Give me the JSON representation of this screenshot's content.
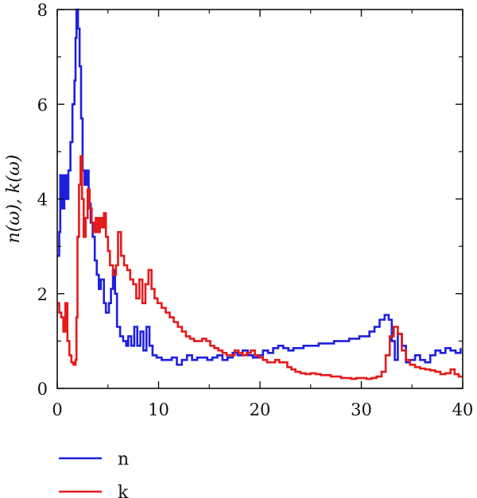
{
  "chart_data": {
    "type": "line",
    "ylabel": "n(ω), k(ω)",
    "xlabel": "",
    "xlim": [
      0,
      40
    ],
    "ylim": [
      0,
      8
    ],
    "xticks": [
      0,
      10,
      20,
      30,
      40
    ],
    "yticks": [
      0,
      2,
      4,
      6,
      8
    ],
    "tick_labels_x": [
      "0",
      "10",
      "20",
      "30",
      "40"
    ],
    "tick_labels_y": [
      "0",
      "2",
      "4",
      "6",
      "8"
    ],
    "grid": false,
    "legend_position": "bottom-left",
    "series": [
      {
        "name": "n",
        "color": "#1f1fe0",
        "points": [
          [
            0,
            2.8
          ],
          [
            0.2,
            3.3
          ],
          [
            0.3,
            4.5
          ],
          [
            0.5,
            3.8
          ],
          [
            0.7,
            4.5
          ],
          [
            0.9,
            4.0
          ],
          [
            1.1,
            4.6
          ],
          [
            1.3,
            5.2
          ],
          [
            1.5,
            6.0
          ],
          [
            1.7,
            6.5
          ],
          [
            1.8,
            7.4
          ],
          [
            1.9,
            8.0
          ],
          [
            2.05,
            7.6
          ],
          [
            2.2,
            6.8
          ],
          [
            2.35,
            5.7
          ],
          [
            2.5,
            4.6
          ],
          [
            2.7,
            4.3
          ],
          [
            2.9,
            4.6
          ],
          [
            3.1,
            3.9
          ],
          [
            3.3,
            3.5
          ],
          [
            3.5,
            3.2
          ],
          [
            3.7,
            2.7
          ],
          [
            3.9,
            2.4
          ],
          [
            4.1,
            2.1
          ],
          [
            4.3,
            2.3
          ],
          [
            4.6,
            1.8
          ],
          [
            4.8,
            1.6
          ],
          [
            5.1,
            1.8
          ],
          [
            5.3,
            2.1
          ],
          [
            5.5,
            2.5
          ],
          [
            5.7,
            2.0
          ],
          [
            5.9,
            1.3
          ],
          [
            6.2,
            1.1
          ],
          [
            6.5,
            1.0
          ],
          [
            6.8,
            0.9
          ],
          [
            7.0,
            1.1
          ],
          [
            7.3,
            0.9
          ],
          [
            7.6,
            1.3
          ],
          [
            7.9,
            0.9
          ],
          [
            8.2,
            1.2
          ],
          [
            8.5,
            0.8
          ],
          [
            8.8,
            1.3
          ],
          [
            9.1,
            0.9
          ],
          [
            9.4,
            0.7
          ],
          [
            9.8,
            0.65
          ],
          [
            10.3,
            0.6
          ],
          [
            10.8,
            0.6
          ],
          [
            11.3,
            0.65
          ],
          [
            11.8,
            0.5
          ],
          [
            12.3,
            0.6
          ],
          [
            12.8,
            0.7
          ],
          [
            13.3,
            0.6
          ],
          [
            13.8,
            0.65
          ],
          [
            14.3,
            0.65
          ],
          [
            14.8,
            0.6
          ],
          [
            15.3,
            0.65
          ],
          [
            15.8,
            0.7
          ],
          [
            16.3,
            0.6
          ],
          [
            16.8,
            0.65
          ],
          [
            17.3,
            0.75
          ],
          [
            17.8,
            0.7
          ],
          [
            18.3,
            0.8
          ],
          [
            18.8,
            0.7
          ],
          [
            19.3,
            0.65
          ],
          [
            19.8,
            0.7
          ],
          [
            20.3,
            0.8
          ],
          [
            20.8,
            0.75
          ],
          [
            21.3,
            0.85
          ],
          [
            21.8,
            0.9
          ],
          [
            22.3,
            0.85
          ],
          [
            22.8,
            0.8
          ],
          [
            23.3,
            0.85
          ],
          [
            23.8,
            0.85
          ],
          [
            24.3,
            0.9
          ],
          [
            24.8,
            0.9
          ],
          [
            25.3,
            0.9
          ],
          [
            25.8,
            0.95
          ],
          [
            26.3,
            0.95
          ],
          [
            26.8,
            0.95
          ],
          [
            27.3,
            1.0
          ],
          [
            27.8,
            1.0
          ],
          [
            28.3,
            1.0
          ],
          [
            28.8,
            1.05
          ],
          [
            29.3,
            1.05
          ],
          [
            29.8,
            1.1
          ],
          [
            30.3,
            1.1
          ],
          [
            30.8,
            1.2
          ],
          [
            31.3,
            1.3
          ],
          [
            31.8,
            1.45
          ],
          [
            32.3,
            1.55
          ],
          [
            32.7,
            1.45
          ],
          [
            33.0,
            1.0
          ],
          [
            33.3,
            0.6
          ],
          [
            33.6,
            1.15
          ],
          [
            34.0,
            0.9
          ],
          [
            34.4,
            0.55
          ],
          [
            34.8,
            0.6
          ],
          [
            35.3,
            0.7
          ],
          [
            35.8,
            0.6
          ],
          [
            36.3,
            0.55
          ],
          [
            36.8,
            0.7
          ],
          [
            37.3,
            0.8
          ],
          [
            37.8,
            0.75
          ],
          [
            38.3,
            0.85
          ],
          [
            38.8,
            0.8
          ],
          [
            39.3,
            0.75
          ],
          [
            39.8,
            0.85
          ]
        ]
      },
      {
        "name": "k",
        "color": "#e51a1a",
        "points": [
          [
            0,
            1.8
          ],
          [
            0.2,
            1.6
          ],
          [
            0.4,
            1.5
          ],
          [
            0.6,
            1.2
          ],
          [
            0.8,
            1.8
          ],
          [
            1.0,
            1.0
          ],
          [
            1.2,
            0.7
          ],
          [
            1.4,
            0.55
          ],
          [
            1.6,
            0.5
          ],
          [
            1.8,
            0.6
          ],
          [
            1.9,
            1.5
          ],
          [
            2.0,
            3.2
          ],
          [
            2.15,
            4.3
          ],
          [
            2.3,
            4.9
          ],
          [
            2.45,
            4.0
          ],
          [
            2.6,
            3.2
          ],
          [
            2.8,
            3.6
          ],
          [
            3.0,
            4.2
          ],
          [
            3.2,
            3.8
          ],
          [
            3.4,
            3.5
          ],
          [
            3.6,
            3.3
          ],
          [
            3.8,
            3.6
          ],
          [
            4.0,
            3.3
          ],
          [
            4.2,
            3.6
          ],
          [
            4.4,
            3.4
          ],
          [
            4.6,
            3.7
          ],
          [
            4.8,
            3.2
          ],
          [
            5.0,
            2.9
          ],
          [
            5.2,
            2.6
          ],
          [
            5.5,
            2.4
          ],
          [
            5.8,
            2.6
          ],
          [
            6.0,
            3.3
          ],
          [
            6.3,
            2.8
          ],
          [
            6.6,
            2.6
          ],
          [
            6.9,
            2.5
          ],
          [
            7.2,
            2.3
          ],
          [
            7.5,
            2.2
          ],
          [
            7.8,
            1.9
          ],
          [
            8.1,
            2.3
          ],
          [
            8.4,
            1.8
          ],
          [
            8.7,
            2.2
          ],
          [
            9.0,
            2.5
          ],
          [
            9.3,
            2.1
          ],
          [
            9.6,
            1.9
          ],
          [
            9.9,
            1.8
          ],
          [
            10.3,
            1.7
          ],
          [
            10.7,
            1.6
          ],
          [
            11.1,
            1.5
          ],
          [
            11.5,
            1.4
          ],
          [
            11.9,
            1.3
          ],
          [
            12.3,
            1.2
          ],
          [
            12.7,
            1.1
          ],
          [
            13.1,
            1.05
          ],
          [
            13.5,
            1.0
          ],
          [
            13.9,
            1.0
          ],
          [
            14.3,
            1.05
          ],
          [
            14.7,
            1.0
          ],
          [
            15.1,
            0.9
          ],
          [
            15.5,
            0.85
          ],
          [
            15.9,
            0.8
          ],
          [
            16.3,
            0.75
          ],
          [
            16.7,
            0.7
          ],
          [
            17.1,
            0.7
          ],
          [
            17.5,
            0.8
          ],
          [
            17.9,
            0.75
          ],
          [
            18.3,
            0.7
          ],
          [
            18.7,
            0.75
          ],
          [
            19.1,
            0.8
          ],
          [
            19.5,
            0.7
          ],
          [
            19.9,
            0.65
          ],
          [
            20.3,
            0.6
          ],
          [
            20.7,
            0.55
          ],
          [
            21.1,
            0.55
          ],
          [
            21.5,
            0.6
          ],
          [
            21.9,
            0.55
          ],
          [
            22.3,
            0.55
          ],
          [
            22.7,
            0.45
          ],
          [
            23.1,
            0.4
          ],
          [
            23.5,
            0.35
          ],
          [
            24.0,
            0.32
          ],
          [
            24.5,
            0.3
          ],
          [
            25.0,
            0.32
          ],
          [
            25.5,
            0.3
          ],
          [
            26.0,
            0.28
          ],
          [
            26.5,
            0.28
          ],
          [
            27.0,
            0.25
          ],
          [
            27.5,
            0.25
          ],
          [
            28.0,
            0.22
          ],
          [
            28.5,
            0.22
          ],
          [
            29.0,
            0.2
          ],
          [
            29.5,
            0.22
          ],
          [
            30.0,
            0.22
          ],
          [
            30.5,
            0.2
          ],
          [
            31.0,
            0.22
          ],
          [
            31.5,
            0.25
          ],
          [
            32.0,
            0.35
          ],
          [
            32.4,
            0.7
          ],
          [
            32.8,
            1.1
          ],
          [
            33.2,
            1.3
          ],
          [
            33.6,
            1.15
          ],
          [
            34.0,
            0.8
          ],
          [
            34.4,
            0.6
          ],
          [
            34.8,
            0.5
          ],
          [
            35.3,
            0.45
          ],
          [
            35.8,
            0.42
          ],
          [
            36.3,
            0.4
          ],
          [
            36.8,
            0.38
          ],
          [
            37.3,
            0.35
          ],
          [
            37.8,
            0.3
          ],
          [
            38.3,
            0.32
          ],
          [
            38.8,
            0.4
          ],
          [
            39.2,
            0.3
          ],
          [
            39.6,
            0.25
          ],
          [
            40,
            0.25
          ]
        ]
      }
    ]
  }
}
